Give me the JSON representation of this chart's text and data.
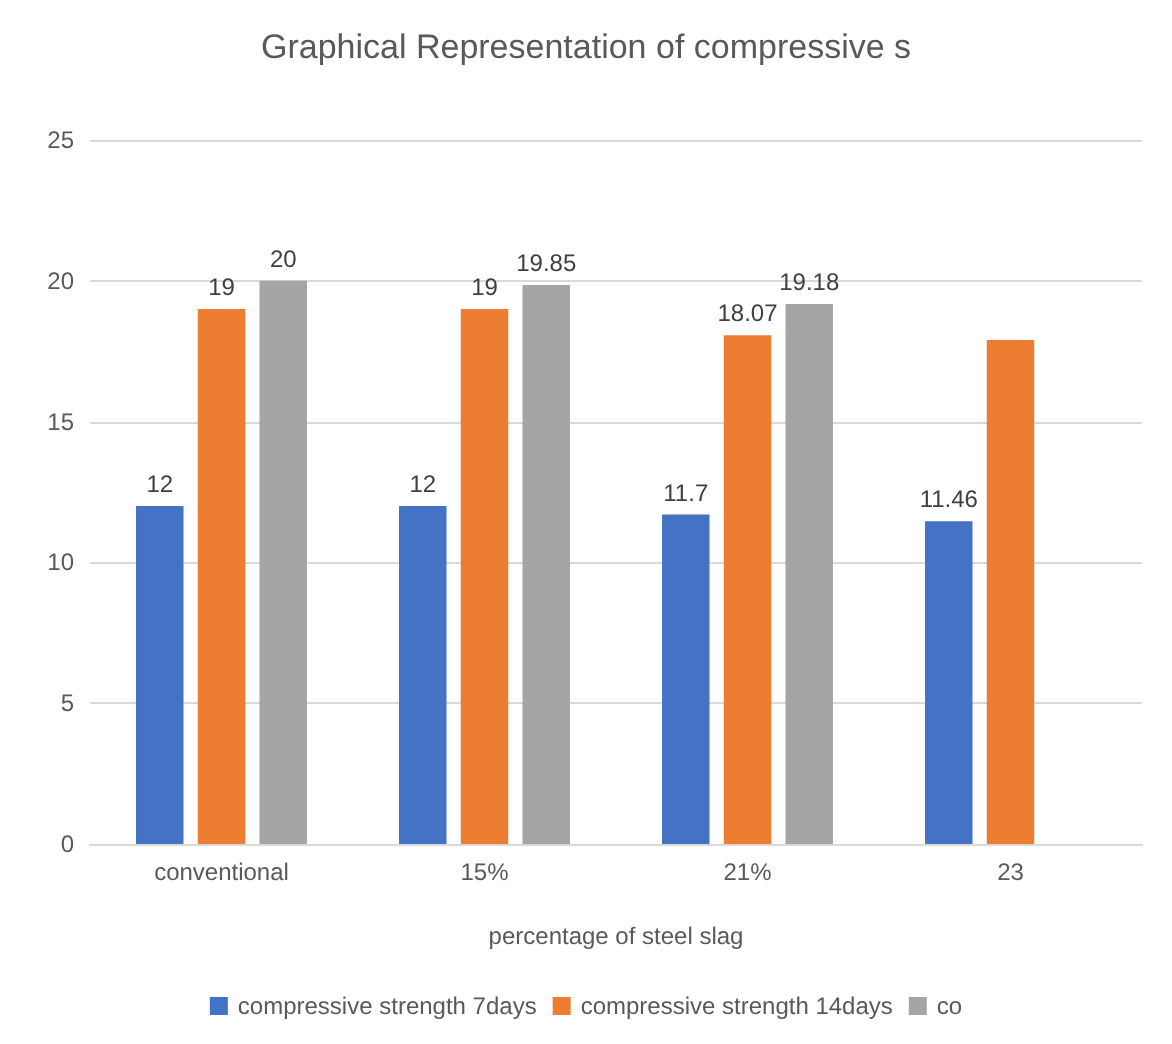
{
  "chart_data": {
    "type": "bar",
    "title": "Graphical Representation of compressive s",
    "xlabel": "percentage of steel slag",
    "categories": [
      "conventional",
      "15%",
      "21%",
      "23"
    ],
    "series": [
      {
        "name": "compressive strength 7days",
        "color": "#4472c4",
        "values": [
          12,
          12,
          11.7,
          11.46
        ],
        "value_labels": [
          "12",
          "12",
          "11.7",
          "11.46"
        ]
      },
      {
        "name": "compressive strength 14days",
        "color": "#ed7d31",
        "values": [
          19,
          19,
          18.07,
          17.9
        ],
        "value_labels": [
          "19",
          "19",
          "18.07",
          null
        ]
      },
      {
        "name": "co",
        "color": "#a5a5a5",
        "values": [
          20,
          19.85,
          19.18,
          null
        ],
        "value_labels": [
          "20",
          "19.85",
          "19.18",
          null
        ]
      }
    ],
    "ylim": [
      0,
      25
    ],
    "yticks": [
      0,
      5,
      10,
      15,
      20,
      25
    ],
    "grid": "y",
    "legend": "bottom"
  }
}
